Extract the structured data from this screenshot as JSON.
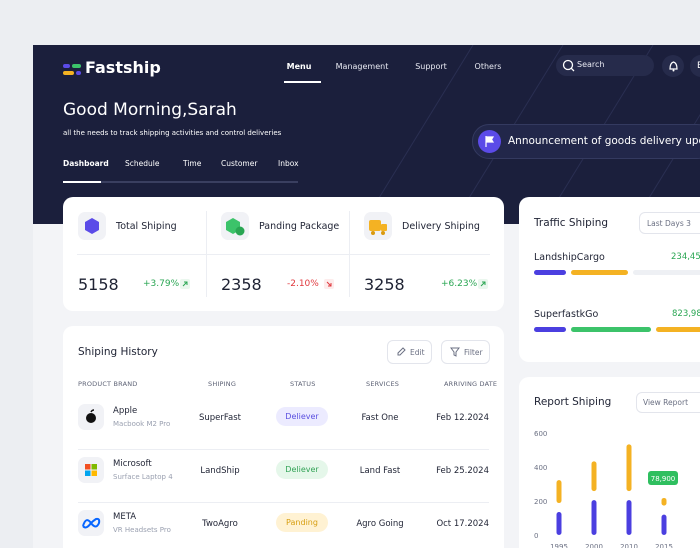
{
  "header": {
    "logo": "Fastship",
    "nav": [
      "Menu",
      "Management",
      "Support",
      "Others"
    ],
    "search": "Search",
    "avatar": "B"
  },
  "hero": {
    "greeting": "Good Morning,Sarah",
    "subtitle": "all the needs to track shipping activities and control deliveries",
    "tabs": [
      "Dashboard",
      "Schedule",
      "Time",
      "Customer",
      "Inbox"
    ],
    "announcement": "Announcement of goods delivery update"
  },
  "stats": [
    {
      "label": "Total Shiping",
      "value": "5158",
      "change": "+3.79%"
    },
    {
      "label": "Panding Package",
      "value": "2358",
      "change": "-2.10%"
    },
    {
      "label": "Delivery Shiping",
      "value": "3258",
      "change": "+6.23%"
    }
  ],
  "history": {
    "title": "Shiping History",
    "edit": "Edit",
    "filter": "Filter",
    "columns": [
      "PRODUCT BRAND",
      "SHIPING",
      "STATUS",
      "SERVICES",
      "ARRIVING DATE"
    ],
    "rows": [
      [
        "Apple",
        "Macbook M2 Pro",
        "SuperFast",
        "Deliever",
        "Fast One",
        "Feb 12.2024"
      ],
      [
        "Microsoft",
        "Surface Laptop 4",
        "LandShip",
        "Deliever",
        "Land Fast",
        "Feb 25.2024"
      ],
      [
        "META",
        "VR Headsets Pro",
        "TwoAgro",
        "Panding",
        "Agro Going",
        "Oct 17.2024"
      ]
    ]
  },
  "traffic": {
    "title": "Traffic Shiping",
    "filter": "Last Days 3",
    "items": [
      {
        "name": "LandshipCargo",
        "value": "234,45"
      },
      {
        "name": "SuperfastkGo",
        "value": "823,98"
      }
    ]
  },
  "report": {
    "title": "Report Shiping",
    "filter": "View Report",
    "ylim": [
      0,
      600
    ],
    "yticks": [
      0,
      200,
      400,
      600
    ],
    "categories": [
      "1995",
      "2000",
      "2010",
      "2015"
    ],
    "series": [
      {
        "color": "#4b3fe0",
        "values": [
          135,
          205,
          205,
          120
        ]
      },
      {
        "color": "#f4b223",
        "values": [
          135,
          175,
          275,
          45
        ]
      }
    ],
    "annotation": "78,900"
  }
}
